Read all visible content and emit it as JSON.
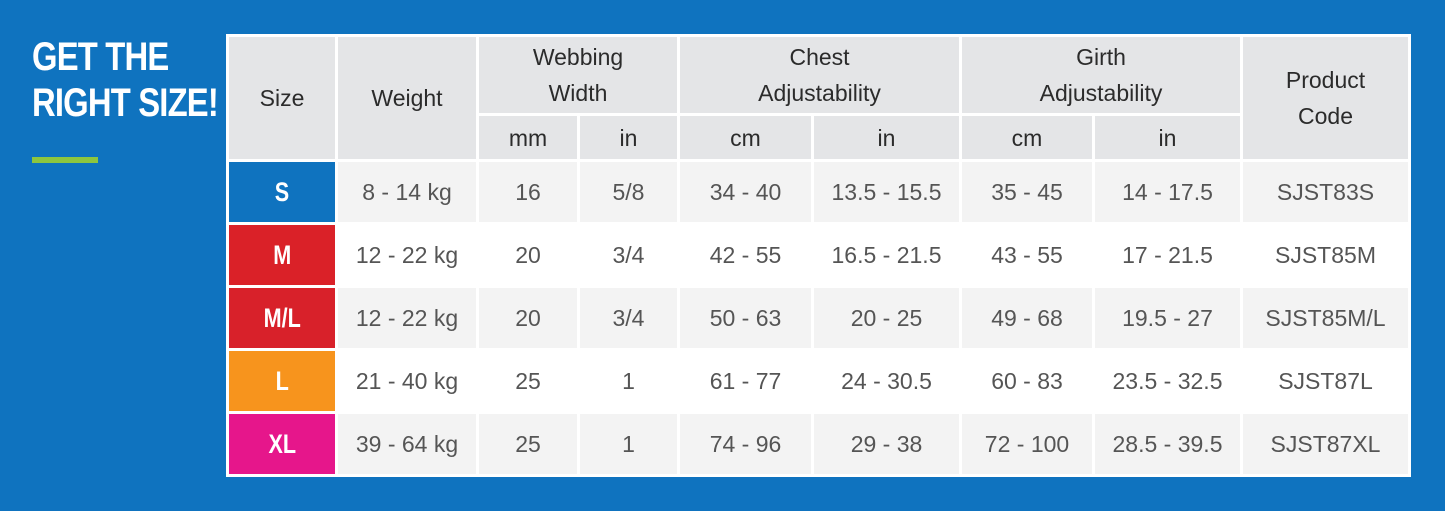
{
  "heading": {
    "line1": "GET THE",
    "line2": "RIGHT SIZE!"
  },
  "table": {
    "headers": {
      "size": "Size",
      "weight": "Weight",
      "webbing": "Webbing Width",
      "chest": "Chest Adjustability",
      "girth": "Girth Adjustability",
      "product": "Product Code",
      "mm": "mm",
      "in1": "in",
      "cm1": "cm",
      "in2": "in",
      "cm2": "cm",
      "in3": "in"
    },
    "rows": [
      {
        "size": "S",
        "color": "#0f73bf",
        "weight": "8 - 14 kg",
        "web_mm": "16",
        "web_in": "5/8",
        "chest_cm": "34 - 40",
        "chest_in": "13.5 - 15.5",
        "girth_cm": "35 - 45",
        "girth_in": "14 - 17.5",
        "code": "SJST83S"
      },
      {
        "size": "M",
        "color": "#da2128",
        "weight": "12 - 22 kg",
        "web_mm": "20",
        "web_in": "3/4",
        "chest_cm": "42 - 55",
        "chest_in": "16.5 - 21.5",
        "girth_cm": "43 - 55",
        "girth_in": "17 - 21.5",
        "code": "SJST85M"
      },
      {
        "size": "M/L",
        "color": "#d8212a",
        "weight": "12 - 22 kg",
        "web_mm": "20",
        "web_in": "3/4",
        "chest_cm": "50 - 63",
        "chest_in": "20 - 25",
        "girth_cm": "49 - 68",
        "girth_in": "19.5 - 27",
        "code": "SJST85M/L"
      },
      {
        "size": "L",
        "color": "#f7941d",
        "weight": "21 - 40 kg",
        "web_mm": "25",
        "web_in": "1",
        "chest_cm": "61 - 77",
        "chest_in": "24 - 30.5",
        "girth_cm": "60 - 83",
        "girth_in": "23.5 - 32.5",
        "code": "SJST87L"
      },
      {
        "size": "XL",
        "color": "#e6168b",
        "weight": "39 - 64 kg",
        "web_mm": "25",
        "web_in": "1",
        "chest_cm": "74 - 96",
        "chest_in": "29 - 38",
        "girth_cm": "72 - 100",
        "girth_in": "28.5 - 39.5",
        "code": "SJST87XL"
      }
    ]
  }
}
